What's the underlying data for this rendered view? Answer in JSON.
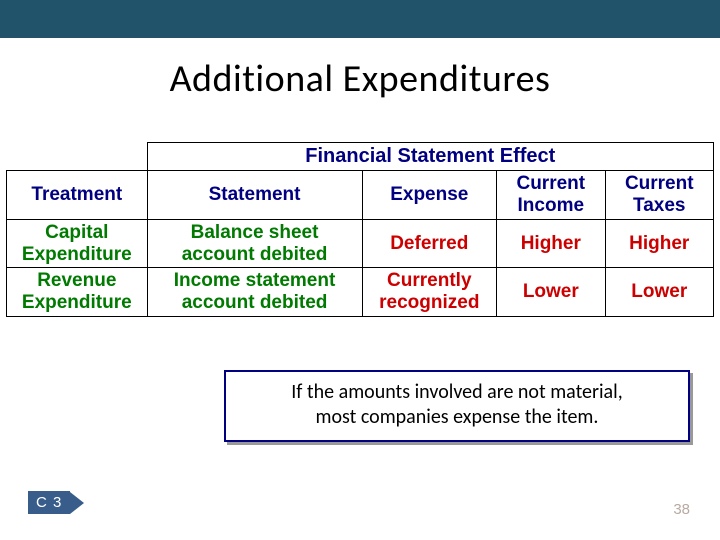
{
  "header": {
    "title": "Additional Expenditures"
  },
  "table": {
    "merged_header": "Financial Statement Effect",
    "columns": [
      "Treatment",
      "Statement",
      "Expense",
      "Current Income",
      "Current Taxes"
    ],
    "rows": [
      {
        "cells": [
          {
            "line1": "Capital",
            "line2": "Expenditure",
            "color": "row-green"
          },
          {
            "line1": "Balance sheet",
            "line2": "account debited",
            "color": "row-green"
          },
          {
            "line1": "Deferred",
            "line2": "",
            "color": "row-red"
          },
          {
            "line1": "Higher",
            "line2": "",
            "color": "row-red"
          },
          {
            "line1": "Higher",
            "line2": "",
            "color": "row-red"
          }
        ]
      },
      {
        "cells": [
          {
            "line1": "Revenue",
            "line2": "Expenditure",
            "color": "row-green"
          },
          {
            "line1": "Income statement",
            "line2": "account debited",
            "color": "row-green"
          },
          {
            "line1": "Currently",
            "line2": "recognized",
            "color": "row-red"
          },
          {
            "line1": "Lower",
            "line2": "",
            "color": "row-red"
          },
          {
            "line1": "Lower",
            "line2": "",
            "color": "row-red"
          }
        ]
      }
    ]
  },
  "note": {
    "line1": "If the amounts involved are not material,",
    "line2": "most companies expense the item."
  },
  "tag": {
    "label": "C 3"
  },
  "page": {
    "number": "38"
  }
}
